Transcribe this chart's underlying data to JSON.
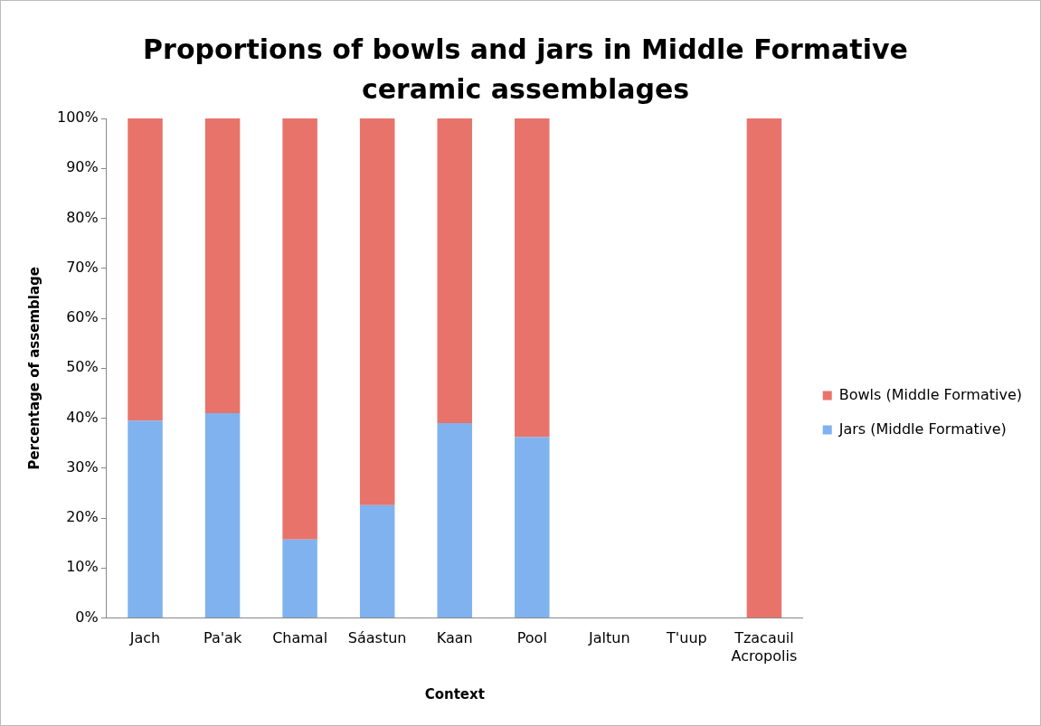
{
  "chart_data": {
    "type": "bar",
    "title": "Proportions of bowls and jars in Middle Formative ceramic assemblages",
    "xlabel": "Context",
    "ylabel": "Percentage of assemblage",
    "categories": [
      "Jach",
      "Pa'ak",
      "Chamal",
      "Sáastun",
      "Kaan",
      "Pool",
      "Jaltun",
      "T'uup",
      "Tzacauil Acropolis"
    ],
    "series": [
      {
        "name": "Jars (Middle Formative)",
        "color": "#7fb2ee",
        "values": [
          39.5,
          41,
          15.7,
          22.6,
          39,
          36.2,
          null,
          null,
          0
        ]
      },
      {
        "name": "Bowls (Middle Formative)",
        "color": "#e8736b",
        "values": [
          60.5,
          59,
          84.3,
          77.4,
          61,
          63.8,
          null,
          null,
          100
        ]
      }
    ],
    "stacked": true,
    "ylim": [
      0,
      100
    ],
    "yticks": [
      {
        "value": 0,
        "label": "0%"
      },
      {
        "value": 10,
        "label": "10%"
      },
      {
        "value": 20,
        "label": "20%"
      },
      {
        "value": 30,
        "label": "30%"
      },
      {
        "value": 40,
        "label": "40%"
      },
      {
        "value": 50,
        "label": "50%"
      },
      {
        "value": 60,
        "label": "60%"
      },
      {
        "value": 70,
        "label": "70%"
      },
      {
        "value": 80,
        "label": "80%"
      },
      {
        "value": 90,
        "label": "90%"
      },
      {
        "value": 100,
        "label": "100%"
      }
    ],
    "grid": false,
    "legend": "right"
  }
}
